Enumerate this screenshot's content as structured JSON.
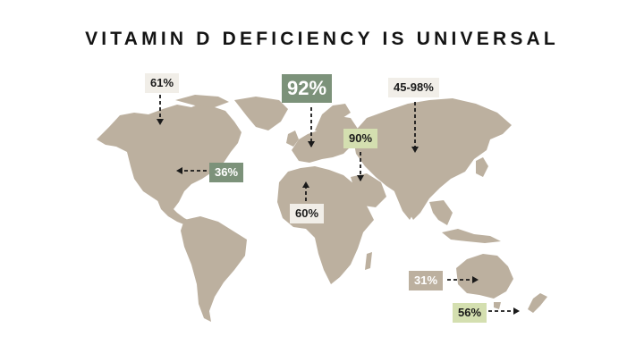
{
  "title": "VITAMIN D DEFICIENCY IS UNIVERSAL",
  "colors": {
    "land": "#bcb09f",
    "arrow": "#1a1a1a",
    "label_light": "#f1eee8",
    "label_green": "#d4dfb0",
    "label_dark": "#7c927a"
  },
  "labels": {
    "canada": "61%",
    "usa": "36%",
    "western_europe": "92%",
    "middle_east": "90%",
    "africa": "60%",
    "russia_asia": "45-98%",
    "australia": "31%",
    "new_zealand": "56%"
  }
}
